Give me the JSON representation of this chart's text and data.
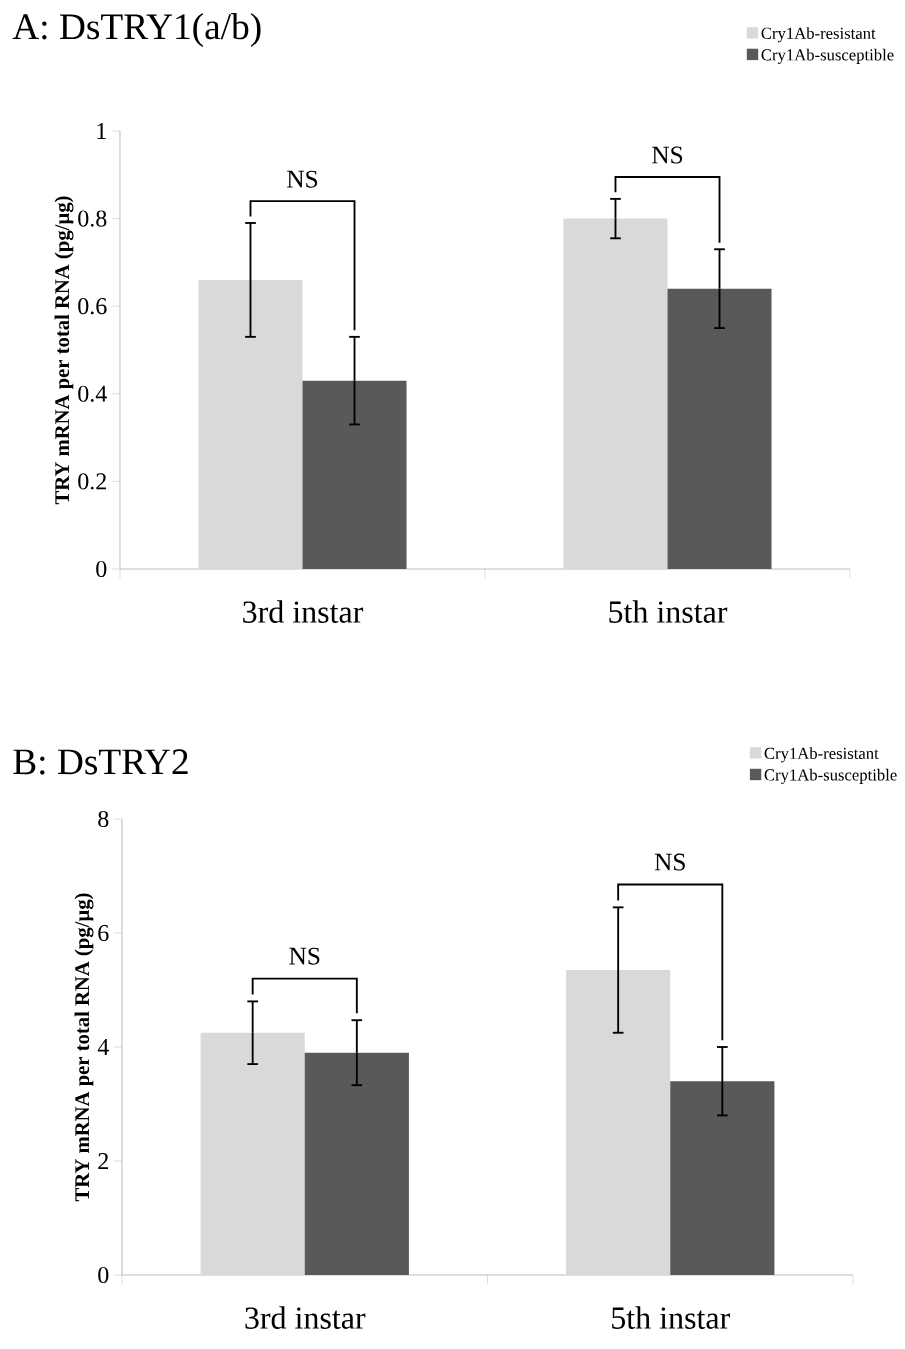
{
  "chart_data": [
    {
      "type": "bar",
      "title": "A: DsTRY1(a/b)",
      "ylabel": "TRY mRNA per total RNA (pg/µg)",
      "categories": [
        "3rd instar",
        "5th instar"
      ],
      "series": [
        {
          "name": "Cry1Ab-resistant",
          "color": "#d9d9d9",
          "values": [
            0.66,
            0.8
          ],
          "errors": [
            0.13,
            0.045
          ]
        },
        {
          "name": "Cry1Ab-susceptible",
          "color": "#595959",
          "values": [
            0.43,
            0.64
          ],
          "errors": [
            0.1,
            0.09
          ]
        }
      ],
      "annotations": [
        "NS",
        "NS"
      ],
      "ylim": [
        0,
        1
      ],
      "yticks": [
        0,
        0.2,
        0.4,
        0.6,
        0.8,
        1
      ],
      "legend": "top right"
    },
    {
      "type": "bar",
      "title": "B: DsTRY2",
      "ylabel": "TRY mRNA per total RNA (pg/µg)",
      "categories": [
        "3rd instar",
        "5th instar"
      ],
      "series": [
        {
          "name": "Cry1Ab-resistant",
          "color": "#d9d9d9",
          "values": [
            4.25,
            5.35
          ],
          "errors": [
            0.55,
            1.1
          ]
        },
        {
          "name": "Cry1Ab-susceptible",
          "color": "#595959",
          "values": [
            3.9,
            3.4
          ],
          "errors": [
            0.57,
            0.6
          ]
        }
      ],
      "annotations": [
        "NS",
        "NS"
      ],
      "ylim": [
        0,
        8
      ],
      "yticks": [
        0,
        2,
        4,
        6,
        8
      ],
      "legend": "top right"
    }
  ]
}
